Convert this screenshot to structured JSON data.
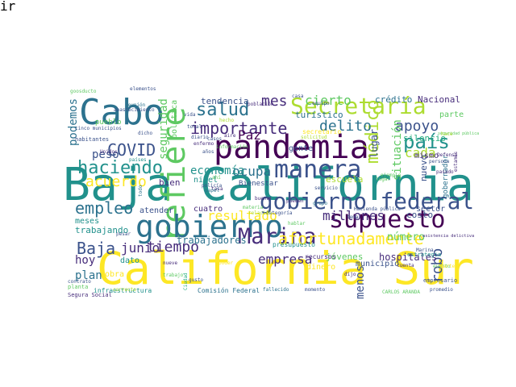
{
  "palette": {
    "dark_purple": "#440154",
    "purple": "#472d7b",
    "indigo": "#3b528b",
    "blue": "#2c728e",
    "teal": "#21918c",
    "sea_green": "#28ae80",
    "green": "#5ec962",
    "lime": "#addc30",
    "yellow": "#fde725"
  },
  "words": [
    {
      "text": "Baja California",
      "color": "#21918c"
    },
    {
      "text": "California Sur",
      "color": "#fde725"
    },
    {
      "text": "pandemia",
      "color": "#440154"
    },
    {
      "text": "Cabo",
      "color": "#2c728e"
    },
    {
      "text": "refiere",
      "color": "#5ec962"
    },
    {
      "text": "gobierno",
      "color": "#2c728e"
    },
    {
      "text": "Secretaría",
      "color": "#addc30"
    },
    {
      "text": "manera",
      "color": "#3b528b"
    },
    {
      "text": "supuesto",
      "color": "#440154"
    },
    {
      "text": "gobierno federal",
      "color": "#3b528b"
    },
    {
      "text": "Marina",
      "color": "#472d7b"
    },
    {
      "text": "salud",
      "color": "#2c728e"
    },
    {
      "text": "país",
      "color": "#21918c"
    },
    {
      "text": "haciendo",
      "color": "#21918c"
    },
    {
      "text": "empleo",
      "color": "#2c728e"
    },
    {
      "text": "médico",
      "color": "#addc30"
    },
    {
      "text": "importante",
      "color": "#472d7b"
    },
    {
      "text": "afortunadamente",
      "color": "#fde725"
    },
    {
      "text": "COVID",
      "color": "#3b528b"
    },
    {
      "text": "acuerdo",
      "color": "#fde725"
    },
    {
      "text": "Baja",
      "color": "#3b528b"
    },
    {
      "text": "junio",
      "color": "#472d7b"
    },
    {
      "text": "tiempo",
      "color": "#472d7b"
    },
    {
      "text": "empresa",
      "color": "#472d7b"
    },
    {
      "text": "resultado",
      "color": "#fde725"
    },
    {
      "text": "apoyo",
      "color": "#3b528b"
    },
    {
      "text": "delito",
      "color": "#2c728e"
    },
    {
      "text": "mes",
      "color": "#472d7b"
    },
    {
      "text": "cierto",
      "color": "#5ec962"
    },
    {
      "text": "cada",
      "color": "#addc30"
    },
    {
      "text": "Paz",
      "color": "#440154"
    },
    {
      "text": "ocupa",
      "color": "#2c728e"
    },
    {
      "text": "millones",
      "color": "#472d7b"
    },
    {
      "text": "número",
      "color": "#5ec962"
    },
    {
      "text": "robo",
      "color": "#3b528b"
    },
    {
      "text": "podemos",
      "color": "#2c728e"
    },
    {
      "text": "seguridad",
      "color": "#5ec962"
    },
    {
      "text": "peso",
      "color": "#3b528b"
    },
    {
      "text": "economía",
      "color": "#21918c"
    },
    {
      "text": "plan",
      "color": "#2c728e"
    },
    {
      "text": "hoy",
      "color": "#472d7b"
    },
    {
      "text": "situación",
      "color": "#5ec962"
    },
    {
      "text": "lugar",
      "color": "#3b528b"
    },
    {
      "text": "menos",
      "color": "#3b528b"
    },
    {
      "text": "nuevo",
      "color": "#3b528b"
    },
    {
      "text": "trabajadores",
      "color": "#2c728e"
    },
    {
      "text": "trabajando",
      "color": "#21918c"
    },
    {
      "text": "hospitales",
      "color": "#472d7b"
    },
    {
      "text": "tendencia",
      "color": "#3b528b"
    },
    {
      "text": "Nacional",
      "color": "#472d7b"
    },
    {
      "text": "crédito",
      "color": "#2c728e"
    },
    {
      "text": "turístico",
      "color": "#2c728e"
    },
    {
      "text": "silencio",
      "color": "#28ae80"
    },
    {
      "text": "escuela",
      "color": "#addc30"
    },
    {
      "text": "jóvenes",
      "color": "#5ec962"
    },
    {
      "text": "costo",
      "color": "#3b528b"
    },
    {
      "text": "sector",
      "color": "#3b528b"
    },
    {
      "text": "atender",
      "color": "#3b528b"
    },
    {
      "text": "cuatro",
      "color": "#472d7b"
    },
    {
      "text": "dato",
      "color": "#21918c"
    },
    {
      "text": "obra",
      "color": "#fde725"
    },
    {
      "text": "municipio",
      "color": "#3b528b"
    },
    {
      "text": "gobernador",
      "color": "#2c728e"
    },
    {
      "text": "meses",
      "color": "#21918c"
    },
    {
      "text": "gente",
      "color": "#3b528b"
    },
    {
      "text": "nivel",
      "color": "#21918c"
    },
    {
      "text": "bien",
      "color": "#472d7b"
    },
    {
      "text": "mismo",
      "color": "#472d7b"
    },
    {
      "text": "política",
      "color": "#5ec962"
    },
    {
      "text": "pueblo",
      "color": "#5ec962"
    },
    {
      "text": "parte",
      "color": "#5ec962"
    },
    {
      "text": "dinero",
      "color": "#fde725"
    },
    {
      "text": "Bienestar",
      "color": "#3b528b"
    },
    {
      "text": "presupuesto",
      "color": "#21918c"
    },
    {
      "text": "recursos",
      "color": "#472d7b"
    },
    {
      "text": "infraestructura",
      "color": "#21918c"
    },
    {
      "text": "Comisión Federal",
      "color": "#2c728e"
    },
    {
      "text": "Segura Social",
      "color": "#472d7b"
    },
    {
      "text": "fallecido",
      "color": "#2c728e"
    },
    {
      "text": "momento",
      "color": "#3b528b"
    },
    {
      "text": "empresario",
      "color": "#3b528b"
    },
    {
      "text": "promedio",
      "color": "#3b528b"
    },
    {
      "text": "evento",
      "color": "#5ec962"
    },
    {
      "text": "CARLOS ARANDA",
      "color": "#5ec962"
    },
    {
      "text": "estrategia",
      "color": "#21918c"
    },
    {
      "text": "habitantes",
      "color": "#3b528b"
    },
    {
      "text": "elementos",
      "color": "#3b528b"
    },
    {
      "text": "reunión",
      "color": "#2c728e"
    },
    {
      "text": "población",
      "color": "#472d7b"
    },
    {
      "text": "equipo",
      "color": "#3b528b"
    },
    {
      "text": "casa",
      "color": "#3b528b"
    },
    {
      "text": "seguridad pública",
      "color": "#5ec962"
    },
    {
      "text": "pasado",
      "color": "#472d7b"
    },
    {
      "text": "persona",
      "color": "#3b528b"
    },
    {
      "text": "Defensa",
      "color": "#472d7b"
    },
    {
      "text": "secretario",
      "color": "#fde725"
    },
    {
      "text": "gusto",
      "color": "#3b528b"
    },
    {
      "text": "planta",
      "color": "#5ec962"
    },
    {
      "text": "contrato",
      "color": "#3b528b"
    },
    {
      "text": "dicho",
      "color": "#3b528b"
    },
    {
      "text": "enfermo",
      "color": "#472d7b"
    },
    {
      "text": "vida",
      "color": "#3b528b"
    },
    {
      "text": "Unidos",
      "color": "#472d7b"
    },
    {
      "text": "países",
      "color": "#21918c"
    },
    {
      "text": "cinco municipios",
      "color": "#3b528b"
    },
    {
      "text": "diario",
      "color": "#3b528b"
    },
    {
      "text": "años",
      "color": "#3b528b"
    },
    {
      "text": "casos",
      "color": "#3b528b"
    },
    {
      "text": "tasa",
      "color": "#472d7b"
    },
    {
      "text": "policía",
      "color": "#3b528b"
    },
    {
      "text": "pueden",
      "color": "#472d7b"
    },
    {
      "text": "buena",
      "color": "#472d7b"
    },
    {
      "text": "nueve",
      "color": "#472d7b"
    },
    {
      "text": "poder",
      "color": "#fde725"
    },
    {
      "text": "trabajo",
      "color": "#5ec962"
    },
    {
      "text": "Ciudad",
      "color": "#28ae80"
    },
    {
      "text": "dijo",
      "color": "#472d7b"
    },
    {
      "text": "cuenta",
      "color": "#472d7b"
    },
    {
      "text": "todo",
      "color": "#2c728e"
    },
    {
      "text": "pesar",
      "color": "#3b528b"
    },
    {
      "text": "correcto",
      "color": "#addc30"
    },
    {
      "text": "materia",
      "color": "#5ec962"
    },
    {
      "text": "información",
      "color": "#5ec962"
    },
    {
      "text": "papel",
      "color": "#2c728e"
    },
    {
      "text": "goosducto",
      "color": "#5ec962"
    },
    {
      "text": "Categoría",
      "color": "#3b528b"
    },
    {
      "text": "lugar",
      "color": "#5ec962"
    },
    {
      "text": "solicitud",
      "color": "#addc30"
    },
    {
      "text": "Marina",
      "color": "#3b528b"
    },
    {
      "text": "ejemplo",
      "color": "#5ec962"
    },
    {
      "text": "abastecimiento",
      "color": "#3b528b"
    },
    {
      "text": "total",
      "color": "#3b528b"
    },
    {
      "text": "hecho",
      "color": "#addc30"
    },
    {
      "text": "ahí",
      "color": "#5ec962"
    },
    {
      "text": "aire",
      "color": "#472d7b"
    },
    {
      "text": "hablar",
      "color": "#5ec962"
    },
    {
      "text": "relación",
      "color": "#addc30"
    },
    {
      "text": "servicio",
      "color": "#3b528b"
    },
    {
      "text": "grupo",
      "color": "#2c728e"
    },
    {
      "text": "hace",
      "color": "#addc30"
    },
    {
      "text": "estamos",
      "color": "#472d7b"
    },
    {
      "text": "parte",
      "color": "#fde725"
    },
    {
      "text": "asistencia delictiva",
      "color": "#472d7b"
    },
    {
      "text": "Hacienda pública",
      "color": "#3b528b"
    },
    {
      "text": "tema",
      "color": "#3b528b"
    },
    {
      "text": "ir",
      "color": "#5ec962"
    },
    {
      "text": "embargo",
      "color": "#5ec962"
    }
  ]
}
